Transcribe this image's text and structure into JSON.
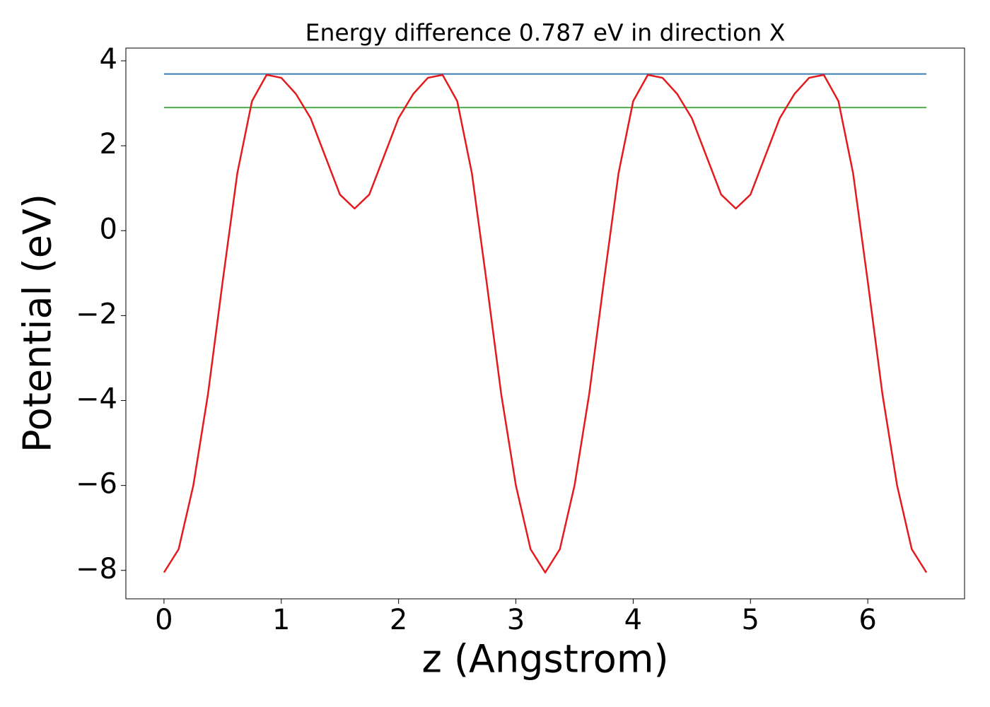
{
  "chart_data": {
    "type": "line",
    "title": "Energy difference 0.787 eV in direction X",
    "xlabel": "z (Angstrom)",
    "ylabel": "Potential (eV)",
    "x": [
      0,
      0.125,
      0.25,
      0.375,
      0.5,
      0.625,
      0.75,
      0.875,
      1,
      1.125,
      1.25,
      1.375,
      1.5,
      1.625,
      1.75,
      1.875,
      2,
      2.125,
      2.25,
      2.375,
      2.5,
      2.625,
      2.75,
      2.875,
      3,
      3.125,
      3.25,
      3.375,
      3.5,
      3.625,
      3.75,
      3.875,
      4,
      4.125,
      4.25,
      4.375,
      4.5,
      4.625,
      4.75,
      4.875,
      5,
      5.125,
      5.25,
      5.375,
      5.5,
      5.625,
      5.75,
      5.875,
      6,
      6.125,
      6.25,
      6.375,
      6.5
    ],
    "series": [
      {
        "color": "#e41a1c",
        "values": [
          -8.05,
          -7.5,
          -6.0,
          -3.85,
          -1.2,
          1.35,
          3.05,
          3.67,
          3.6,
          3.22,
          2.65,
          1.75,
          0.85,
          0.52,
          0.85,
          1.75,
          2.65,
          3.22,
          3.6,
          3.67,
          3.05,
          1.35,
          -1.2,
          -3.85,
          -6.0,
          -7.5,
          -8.05,
          -7.5,
          -6.0,
          -3.85,
          -1.2,
          1.35,
          3.05,
          3.67,
          3.6,
          3.22,
          2.65,
          1.75,
          0.85,
          0.52,
          0.85,
          1.75,
          2.65,
          3.22,
          3.6,
          3.67,
          3.05,
          1.35,
          -1.2,
          -3.85,
          -6.0,
          -7.5,
          -8.05
        ]
      }
    ],
    "hlines": [
      {
        "value": 3.69,
        "color": "#377eb8"
      },
      {
        "value": 2.9,
        "color": "#4daf4a"
      }
    ],
    "xlim": [
      -0.325,
      6.825
    ],
    "ylim": [
      -8.67,
      4.3
    ],
    "xticks": [
      0,
      1,
      2,
      3,
      4,
      5,
      6
    ],
    "yticks": [
      {
        "value": -8,
        "label": "−8"
      },
      {
        "value": -6,
        "label": "−6"
      },
      {
        "value": -4,
        "label": "−4"
      },
      {
        "value": -2,
        "label": "−2"
      },
      0,
      2,
      4
    ],
    "grid": false
  }
}
